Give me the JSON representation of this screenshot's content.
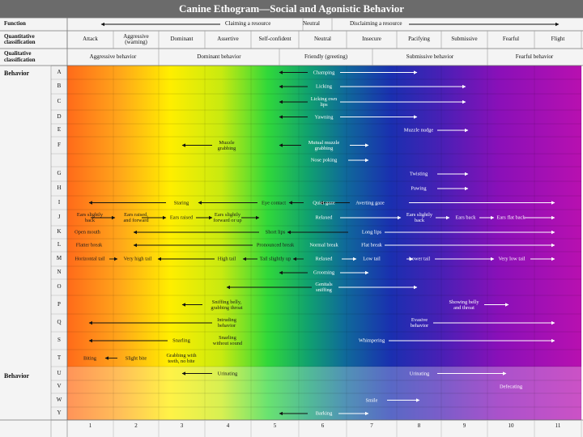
{
  "title": "Canine Ethogram—Social and Agonistic Behavior",
  "header": {
    "function_label": "Function",
    "claiming": "Claiming a resource",
    "disclaiming": "Disclaiming a resource",
    "quant_label": "Quantitative\nclassification",
    "quant_cols": [
      "Attack",
      "Aggressive\n(warning)",
      "Dominant",
      "Assertive",
      "Self-confident",
      "Neutral",
      "Insecure",
      "Pacifying",
      "Submissive",
      "Fearful",
      "Flight"
    ],
    "function_neutral": "Neutral",
    "qual_label": "Qualitative\nclassification",
    "qual_cols": [
      "Aggressive behavior",
      "Dominant behavior",
      "Friendly (greeting)",
      "Submissive behavior",
      "Fearful behavior"
    ]
  },
  "behavior_label": "Behavior",
  "behavior_label_2": "Behavior",
  "rows": [
    "A",
    "B",
    "C",
    "D",
    "E",
    "F",
    "",
    "G",
    "H",
    "I",
    "J",
    "K",
    "L",
    "M",
    "N",
    "O",
    "P",
    "Q",
    "S",
    "T",
    "U",
    "V",
    "W",
    "Y"
  ],
  "column_numbers": [
    "1",
    "2",
    "3",
    "4",
    "5",
    "6",
    "7",
    "8",
    "9",
    "10",
    "11"
  ],
  "labels": {
    "champing": "Champing",
    "licking": "Licking",
    "licking_own_lips": "Licking own\nlips",
    "yawning": "Yawning",
    "muzzle_nudge": "Muzzle nudge",
    "muzzle_grabbing": "Muzzle\ngrabbing",
    "mutual_muzzle_grabbing": "Mutual muzzle\ngrabbing",
    "nose_poking": "Nose poking",
    "twisting": "Twisting",
    "pawing": "Pawing",
    "staring": "Staring",
    "eye_contact": "Eye contact",
    "quiet_gaze": "Quiet gaze",
    "averting_gaze": "Averting gaze",
    "ears_slightly_back_l": "Ears slightly\nback",
    "ears_raised_forward": "Ears raised,\nand forward",
    "ears_raised": "Ears raised",
    "ears_slightly_forward": "Ears slightly\nforward or up",
    "relaxed_j": "Relaxed",
    "ears_slightly_back_r": "Ears slightly\nback",
    "ears_back": "Ears back",
    "ears_flat_back": "Ears flat back",
    "open_mouth": "Open mouth",
    "short_lips": "Short lips",
    "long_lips": "Long lips",
    "flatter_break": "Flatter break",
    "pronounced_break": "Pronounced break",
    "normal_break": "Normal break",
    "flat_break": "Flat break",
    "horizontal_tail": "Horizontal tail",
    "very_high_tail": "Very high tail",
    "high_tail": "High tail",
    "tail_slightly_up": "Tail slightly up",
    "relaxed_m": "Relaxed",
    "low_tail": "Low tail",
    "lower_tail": "Lower tail",
    "very_low_tail": "Very low tail",
    "grooming": "Grooming",
    "genitals_sniffing": "Genitals\nsniffing",
    "sniffing_belly": "Sniffing belly,\ngrabbing throat",
    "showing_belly": "Showing belly\nand throat",
    "intruding": "Intruding\nbehavior",
    "evasive": "Evasive\nbehavior",
    "snarling": "Snarling",
    "snarling_without": "Snarling\nwithout sound",
    "whimpering": "Whimpering",
    "biting": "Biting",
    "slight_bite": "Slight bite",
    "grabbing_teeth": "Grabbing with\nteeth, no bite",
    "urinating_l": "Urinating",
    "urinating_r": "Urinating",
    "defecating": "Defecating",
    "smile": "Smile",
    "barking": "Barking"
  },
  "colors": {
    "title_bg": "#6b6b6b",
    "orange": "#ff8a1e",
    "yellow": "#ffef00",
    "green": "#2fd63a",
    "blue": "#1a2fb0",
    "purple": "#7a14b8",
    "magenta": "#b010b8"
  }
}
